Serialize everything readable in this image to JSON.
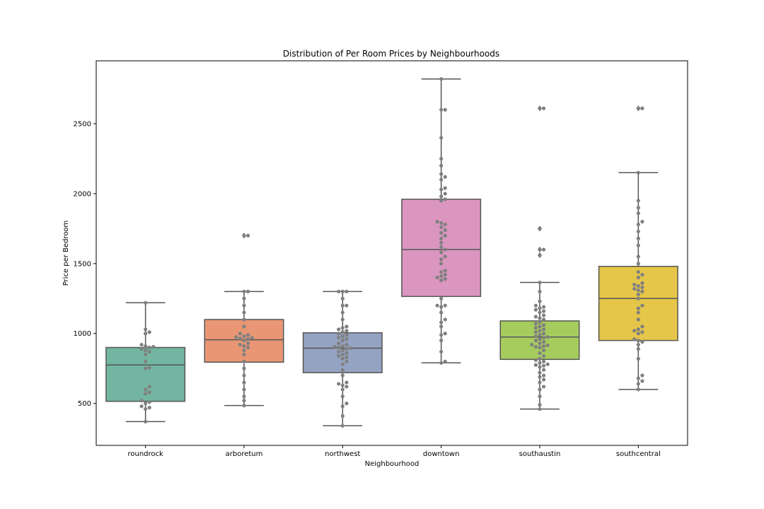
{
  "chart_data": {
    "type": "box",
    "title": "Distribution of Per Room Prices by Neighbourhoods",
    "xlabel": "Neighbourhood",
    "ylabel": "Price per Bedroom",
    "ylim": [
      200,
      2950
    ],
    "yticks": [
      500,
      1000,
      1500,
      2000,
      2500
    ],
    "grid": false,
    "legend": "none",
    "categories": [
      "roundrock",
      "arboretum",
      "northwest",
      "downtown",
      "southaustin",
      "southcentral"
    ],
    "box_colors": [
      "#72b6a1",
      "#e99675",
      "#95a3c3",
      "#db96c0",
      "#a6cc5e",
      "#e5c648"
    ],
    "box_edge_color": "#555555",
    "point_color": "#808080",
    "boxes": [
      {
        "whislo": 370,
        "q1": 515,
        "med": 775,
        "q3": 900,
        "whishi": 1220,
        "fliers": []
      },
      {
        "whislo": 485,
        "q1": 795,
        "med": 955,
        "q3": 1100,
        "whishi": 1300,
        "fliers": [
          1700
        ]
      },
      {
        "whislo": 340,
        "q1": 720,
        "med": 895,
        "q3": 1005,
        "whishi": 1300,
        "fliers": []
      },
      {
        "whislo": 790,
        "q1": 1265,
        "med": 1600,
        "q3": 1960,
        "whishi": 2820,
        "fliers": []
      },
      {
        "whislo": 460,
        "q1": 815,
        "med": 975,
        "q3": 1090,
        "whishi": 1365,
        "fliers": [
          1560,
          1600,
          1750,
          2610
        ]
      },
      {
        "whislo": 600,
        "q1": 950,
        "med": 1250,
        "q3": 1480,
        "whishi": 2150,
        "fliers": [
          2610
        ]
      }
    ],
    "points": [
      [
        370,
        460,
        470,
        480,
        500,
        510,
        520,
        570,
        580,
        600,
        620,
        750,
        755,
        800,
        850,
        870,
        880,
        890,
        900,
        905,
        910,
        920,
        1000,
        1010,
        1030,
        1220
      ],
      [
        485,
        520,
        550,
        600,
        650,
        700,
        750,
        800,
        850,
        880,
        900,
        910,
        920,
        930,
        950,
        960,
        965,
        970,
        975,
        980,
        990,
        1000,
        1050,
        1100,
        1150,
        1200,
        1250,
        1300,
        1300,
        1700,
        1700
      ],
      [
        340,
        410,
        480,
        500,
        550,
        600,
        620,
        630,
        640,
        650,
        700,
        740,
        780,
        800,
        820,
        830,
        840,
        850,
        860,
        870,
        880,
        890,
        895,
        900,
        905,
        910,
        920,
        930,
        950,
        960,
        970,
        980,
        990,
        1000,
        1010,
        1020,
        1030,
        1040,
        1050,
        1100,
        1150,
        1200,
        1200,
        1250,
        1300,
        1300,
        1300
      ],
      [
        790,
        800,
        870,
        950,
        990,
        1000,
        1050,
        1080,
        1100,
        1150,
        1190,
        1200,
        1200,
        1250,
        1380,
        1390,
        1400,
        1410,
        1420,
        1440,
        1450,
        1500,
        1530,
        1550,
        1580,
        1600,
        1620,
        1650,
        1680,
        1700,
        1720,
        1740,
        1760,
        1780,
        1790,
        1800,
        1950,
        1960,
        1980,
        2000,
        2030,
        2040,
        2100,
        2120,
        2140,
        2200,
        2250,
        2400,
        2600,
        2600,
        2820
      ],
      [
        460,
        490,
        550,
        600,
        620,
        650,
        670,
        690,
        700,
        720,
        740,
        760,
        770,
        775,
        780,
        790,
        800,
        810,
        820,
        840,
        860,
        880,
        900,
        905,
        910,
        915,
        920,
        930,
        940,
        950,
        960,
        970,
        975,
        980,
        990,
        1000,
        1010,
        1020,
        1030,
        1040,
        1050,
        1060,
        1070,
        1080,
        1100,
        1110,
        1120,
        1130,
        1150,
        1160,
        1170,
        1180,
        1190,
        1200,
        1230,
        1300,
        1365,
        1560,
        1600,
        1600,
        1750,
        2610,
        2610
      ],
      [
        600,
        640,
        660,
        680,
        700,
        820,
        890,
        920,
        940,
        950,
        960,
        1000,
        1010,
        1020,
        1030,
        1050,
        1100,
        1150,
        1180,
        1200,
        1250,
        1280,
        1300,
        1310,
        1320,
        1330,
        1340,
        1350,
        1360,
        1400,
        1420,
        1440,
        1500,
        1550,
        1630,
        1680,
        1730,
        1780,
        1800,
        1860,
        1900,
        1950,
        2150,
        2610,
        2610
      ]
    ]
  }
}
